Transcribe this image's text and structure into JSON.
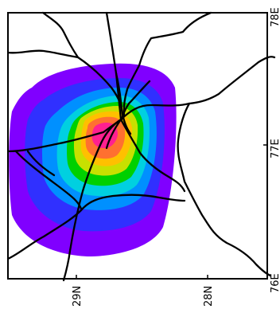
{
  "map": {
    "frame_color": "#000000",
    "road_color": "#000000",
    "field_colors": [
      "#8000ff",
      "#3030ff",
      "#0090ff",
      "#00d0e0",
      "#00d000",
      "#c8e000",
      "#ffc000",
      "#ff7030",
      "#ff2090"
    ],
    "lon_labels": [
      "76E",
      "77E",
      "78E"
    ],
    "lat_labels": [
      "29N",
      "28N"
    ]
  }
}
